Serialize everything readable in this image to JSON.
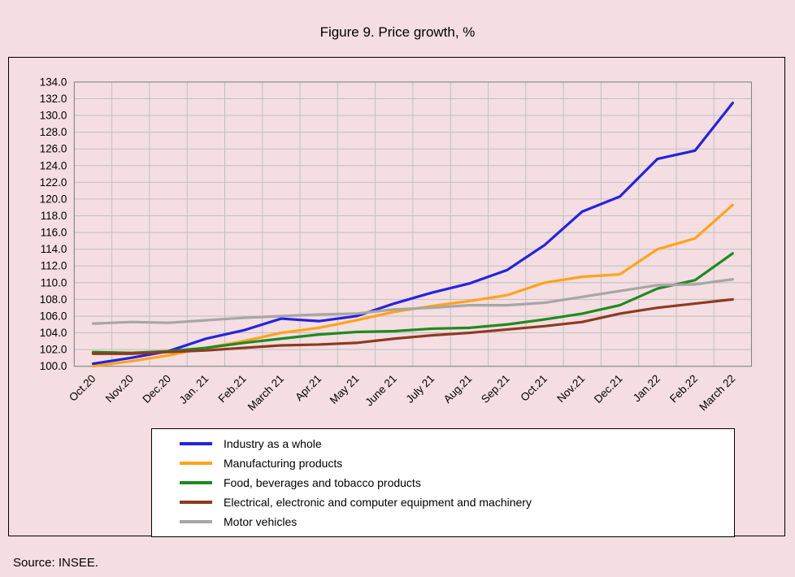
{
  "page": {
    "title": "Figure 9. Price growth, %",
    "source": "Source: INSEE."
  },
  "colors": {
    "background": "#f4dee2",
    "grid": "#bfbfbf",
    "plot_border": "#808080",
    "legend_background": "#ffffff",
    "text": "#000000"
  },
  "chart_data": {
    "type": "line",
    "title": "Figure 9. Price growth, %",
    "categories": [
      "Oct.20",
      "Nov.20",
      "Dec.20",
      "Jan. 21",
      "Feb.21",
      "March 21",
      "Apr.21",
      "May 21",
      "June 21",
      "July 21",
      "Aug.21",
      "Sep.21",
      "Oct.21",
      "Nov.21",
      "Dec.21",
      "Jan.22",
      "Feb.22",
      "March 22"
    ],
    "xlabel": "",
    "ylabel": "",
    "ylim": [
      100.0,
      134.0
    ],
    "ytick_step": 2.0,
    "grid": true,
    "legend_position": "bottom",
    "series": [
      {
        "name": "Industry as a whole",
        "color": "#2323e0",
        "values": [
          100.3,
          101.0,
          101.8,
          103.3,
          104.3,
          105.7,
          105.4,
          106.0,
          107.5,
          108.8,
          109.9,
          111.5,
          114.5,
          118.5,
          120.3,
          124.8,
          125.8,
          131.5
        ]
      },
      {
        "name": "Manufacturing products",
        "color": "#ffa319",
        "values": [
          100.0,
          100.6,
          101.3,
          102.2,
          103.0,
          104.0,
          104.6,
          105.5,
          106.5,
          107.2,
          107.8,
          108.5,
          110.0,
          110.7,
          111.0,
          114.0,
          115.3,
          119.3
        ]
      },
      {
        "name": "Food, beverages and tobacco products",
        "color": "#1f8a1f",
        "values": [
          101.7,
          101.6,
          101.8,
          102.2,
          102.8,
          103.3,
          103.8,
          104.1,
          104.2,
          104.5,
          104.6,
          105.0,
          105.6,
          106.3,
          107.3,
          109.3,
          110.3,
          113.5
        ]
      },
      {
        "name": "Electrical, electronic and computer equipment and machinery",
        "color": "#8e3a20",
        "values": [
          101.5,
          101.5,
          101.7,
          101.9,
          102.2,
          102.5,
          102.6,
          102.8,
          103.3,
          103.7,
          104.0,
          104.4,
          104.8,
          105.3,
          106.3,
          107.0,
          107.5,
          108.0
        ]
      },
      {
        "name": "Motor vehicles",
        "color": "#a6a6a6",
        "values": [
          105.1,
          105.3,
          105.2,
          105.5,
          105.8,
          106.0,
          106.2,
          106.3,
          106.8,
          107.0,
          107.3,
          107.3,
          107.6,
          108.3,
          109.0,
          109.7,
          109.8,
          110.4
        ]
      }
    ]
  }
}
